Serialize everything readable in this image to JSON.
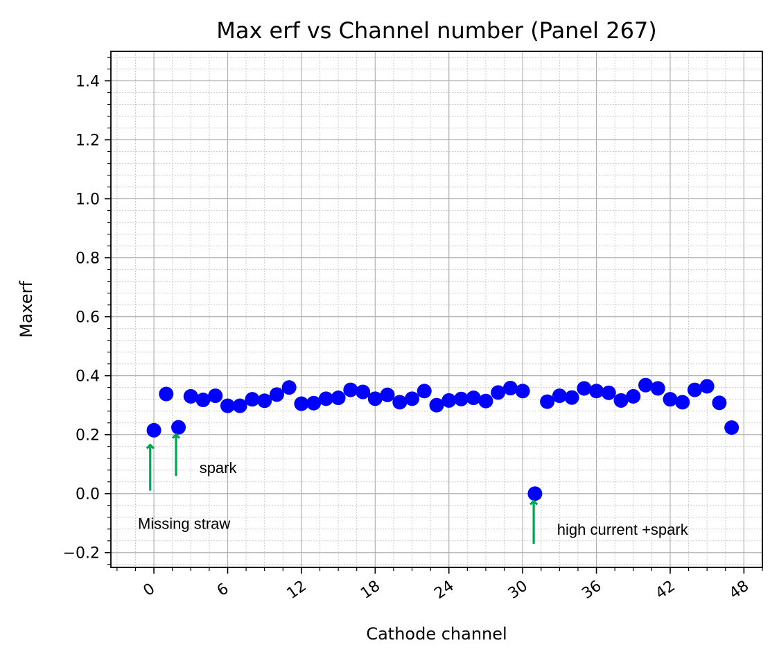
{
  "chart_data": {
    "type": "scatter",
    "title": "Max erf vs Channel number (Panel 267)",
    "xlabel": "Cathode channel",
    "ylabel": "Maxerf",
    "xlim": [
      -3.5,
      49.5
    ],
    "ylim": [
      -0.25,
      1.5
    ],
    "xticks": [
      0,
      6,
      12,
      18,
      24,
      30,
      36,
      42,
      48
    ],
    "xtick_labels": [
      "0",
      "6",
      "12",
      "18",
      "24",
      "30",
      "36",
      "42",
      "48"
    ],
    "yticks": [
      -0.2,
      0.0,
      0.2,
      0.4,
      0.6,
      0.8,
      1.0,
      1.2,
      1.4
    ],
    "ytick_labels": [
      "−0.2",
      "0.0",
      "0.2",
      "0.4",
      "0.6",
      "0.8",
      "1.0",
      "1.2",
      "1.4"
    ],
    "grid": true,
    "marker_color": "#0000ff",
    "series": [
      {
        "x": [
          0,
          1,
          2,
          3,
          4,
          5,
          6,
          7,
          8,
          9,
          10,
          11,
          12,
          13,
          14,
          15,
          16,
          17,
          18,
          19,
          20,
          21,
          22,
          23,
          24,
          25,
          26,
          27,
          28,
          29,
          30,
          31,
          32,
          33,
          34,
          35,
          36,
          37,
          38,
          39,
          40,
          41,
          42,
          43,
          44,
          45,
          46,
          47
        ],
        "values": [
          0.215,
          0.338,
          0.225,
          0.33,
          0.318,
          0.332,
          0.298,
          0.298,
          0.32,
          0.315,
          0.336,
          0.36,
          0.305,
          0.307,
          0.322,
          0.325,
          0.352,
          0.345,
          0.322,
          0.335,
          0.31,
          0.322,
          0.348,
          0.3,
          0.316,
          0.321,
          0.325,
          0.314,
          0.343,
          0.358,
          0.348,
          0.0,
          0.312,
          0.332,
          0.326,
          0.357,
          0.348,
          0.342,
          0.316,
          0.33,
          0.368,
          0.357,
          0.32,
          0.31,
          0.352,
          0.364,
          0.308,
          0.224
        ]
      }
    ],
    "annotations": [
      {
        "text": "spark",
        "arrow_x": 1.8,
        "arrow_y_from": 0.06,
        "arrow_y_to": 0.2,
        "text_x": 3.7,
        "text_y": 0.07
      },
      {
        "text": "Missing straw",
        "arrow_x": -0.3,
        "arrow_y_from": 0.01,
        "arrow_y_to": 0.165,
        "text_x": -1.3,
        "text_y": -0.12
      },
      {
        "text": "high current +spark",
        "arrow_x": 30.9,
        "arrow_y_from": -0.17,
        "arrow_y_to": -0.025,
        "text_x": 32.8,
        "text_y": -0.14
      }
    ],
    "annotation_color": "#00a651"
  }
}
